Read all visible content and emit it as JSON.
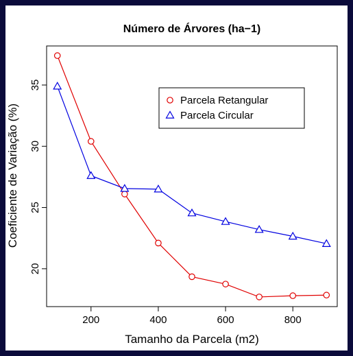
{
  "chart_data": {
    "type": "line",
    "title": "Número de Árvores (ha−1)",
    "xlabel": "Tamanho da Parcela (m2)",
    "ylabel": "Coeficiente de Variação (%)",
    "x": [
      100,
      200,
      300,
      400,
      500,
      600,
      700,
      800,
      900
    ],
    "series": [
      {
        "name": "Parcela Retangular",
        "color": "#e00000",
        "marker": "circle",
        "values": [
          37.4,
          30.4,
          26.1,
          22.1,
          19.35,
          18.75,
          17.7,
          17.8,
          17.85
        ]
      },
      {
        "name": "Parcela Circular",
        "color": "#0000e0",
        "marker": "triangle",
        "values": [
          34.9,
          27.6,
          26.55,
          26.5,
          24.55,
          23.85,
          23.2,
          22.65,
          22.05
        ]
      }
    ],
    "xlim": [
      68,
      932
    ],
    "xticks": [
      200,
      400,
      600,
      800
    ],
    "ylim": [
      16.91,
      38.19
    ],
    "yticks": [
      20,
      25,
      30,
      35
    ],
    "legend": "top-right",
    "grid": false
  }
}
